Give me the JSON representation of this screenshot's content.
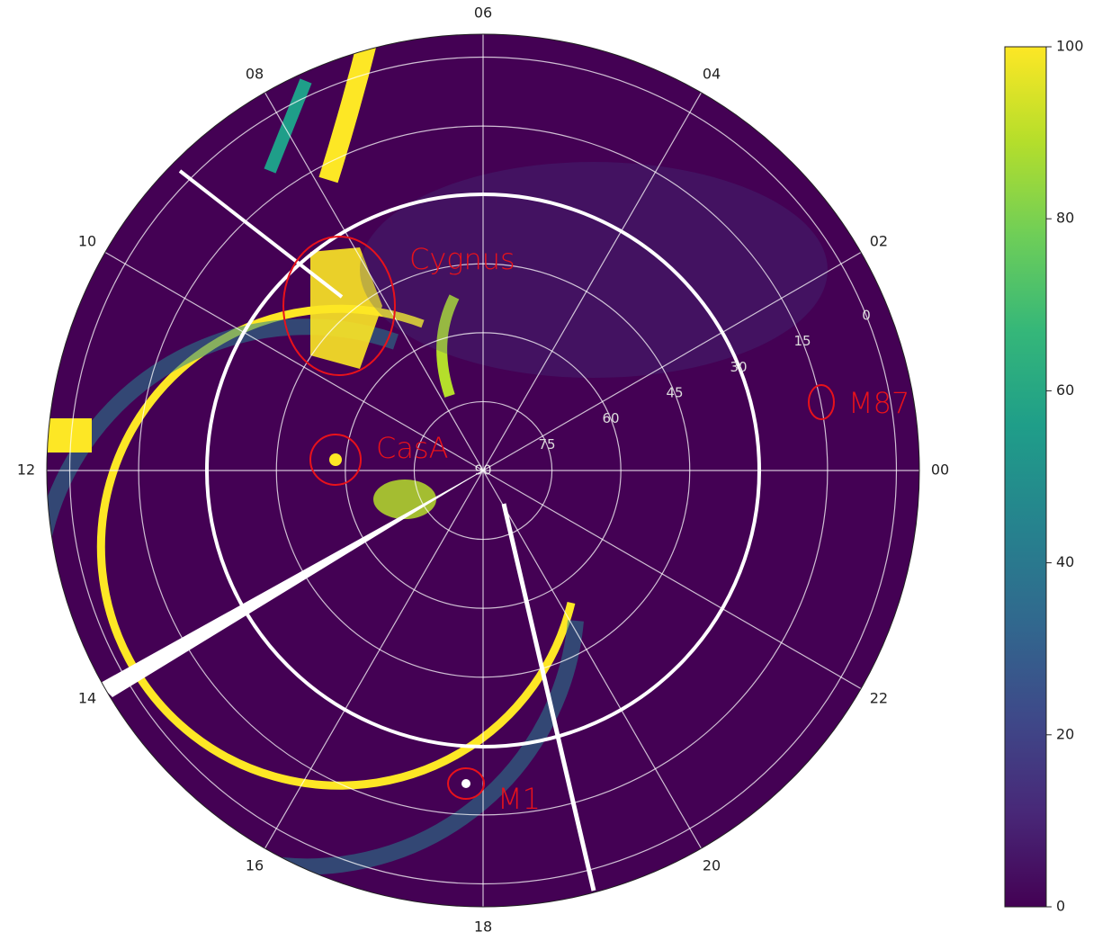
{
  "chart_data": {
    "type": "polar-heatmap",
    "colormap": "viridis",
    "clim": [
      0,
      100
    ],
    "cticks": [
      0,
      20,
      40,
      60,
      80,
      100
    ],
    "xlim": [
      0,
      24
    ],
    "xticks": [
      {
        "value": 0,
        "label": "00"
      },
      {
        "value": 2,
        "label": "02"
      },
      {
        "value": 4,
        "label": "04"
      },
      {
        "value": 6,
        "label": "06"
      },
      {
        "value": 8,
        "label": "08"
      },
      {
        "value": 10,
        "label": "10"
      },
      {
        "value": 12,
        "label": "12"
      },
      {
        "value": 14,
        "label": "14"
      },
      {
        "value": 16,
        "label": "16"
      },
      {
        "value": 18,
        "label": "18"
      },
      {
        "value": 20,
        "label": "20"
      },
      {
        "value": 22,
        "label": "22"
      }
    ],
    "ylim": [
      90,
      -5
    ],
    "yticks": [
      0,
      15,
      30,
      45,
      60,
      75,
      90
    ],
    "grid": true,
    "annotations": [
      "Cygnus",
      "CasA",
      "M87",
      "M1"
    ]
  }
}
